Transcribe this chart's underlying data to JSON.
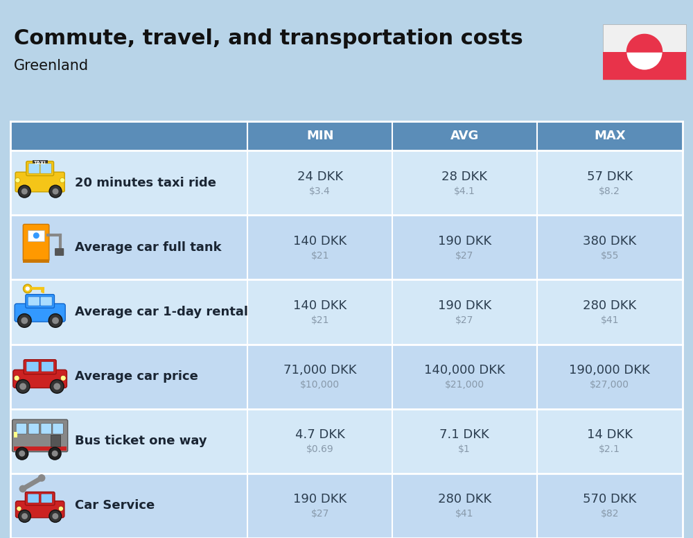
{
  "title": "Commute, travel, and transportation costs",
  "subtitle": "Greenland",
  "background_color": "#b8d4e8",
  "header_bg_color": "#5b8db8",
  "header_text_color": "#ffffff",
  "table_border_color": "#ffffff",
  "col_header": [
    "MIN",
    "AVG",
    "MAX"
  ],
  "rows": [
    {
      "label": "20 minutes taxi ride",
      "min_dkk": "24 DKK",
      "min_usd": "$3.4",
      "avg_dkk": "28 DKK",
      "avg_usd": "$4.1",
      "max_dkk": "57 DKK",
      "max_usd": "$8.2"
    },
    {
      "label": "Average car full tank",
      "min_dkk": "140 DKK",
      "min_usd": "$21",
      "avg_dkk": "190 DKK",
      "avg_usd": "$27",
      "max_dkk": "380 DKK",
      "max_usd": "$55"
    },
    {
      "label": "Average car 1-day rental",
      "min_dkk": "140 DKK",
      "min_usd": "$21",
      "avg_dkk": "190 DKK",
      "avg_usd": "$27",
      "max_dkk": "280 DKK",
      "max_usd": "$41"
    },
    {
      "label": "Average car price",
      "min_dkk": "71,000 DKK",
      "min_usd": "$10,000",
      "avg_dkk": "140,000 DKK",
      "avg_usd": "$21,000",
      "max_dkk": "190,000 DKK",
      "max_usd": "$27,000"
    },
    {
      "label": "Bus ticket one way",
      "min_dkk": "4.7 DKK",
      "min_usd": "$0.69",
      "avg_dkk": "7.1 DKK",
      "avg_usd": "$1",
      "max_dkk": "14 DKK",
      "max_usd": "$2.1"
    },
    {
      "label": "Car Service",
      "min_dkk": "190 DKK",
      "min_usd": "$27",
      "avg_dkk": "280 DKK",
      "avg_usd": "$41",
      "max_dkk": "570 DKK",
      "max_usd": "$82"
    }
  ],
  "dkk_color": "#2c3e50",
  "usd_color": "#8899aa",
  "label_color": "#1a2533",
  "title_fontsize": 22,
  "subtitle_fontsize": 15,
  "header_fontsize": 13,
  "label_fontsize": 13,
  "value_fontsize": 13,
  "usd_fontsize": 10,
  "row_colors": [
    "#d4e8f7",
    "#c2daf2"
  ]
}
